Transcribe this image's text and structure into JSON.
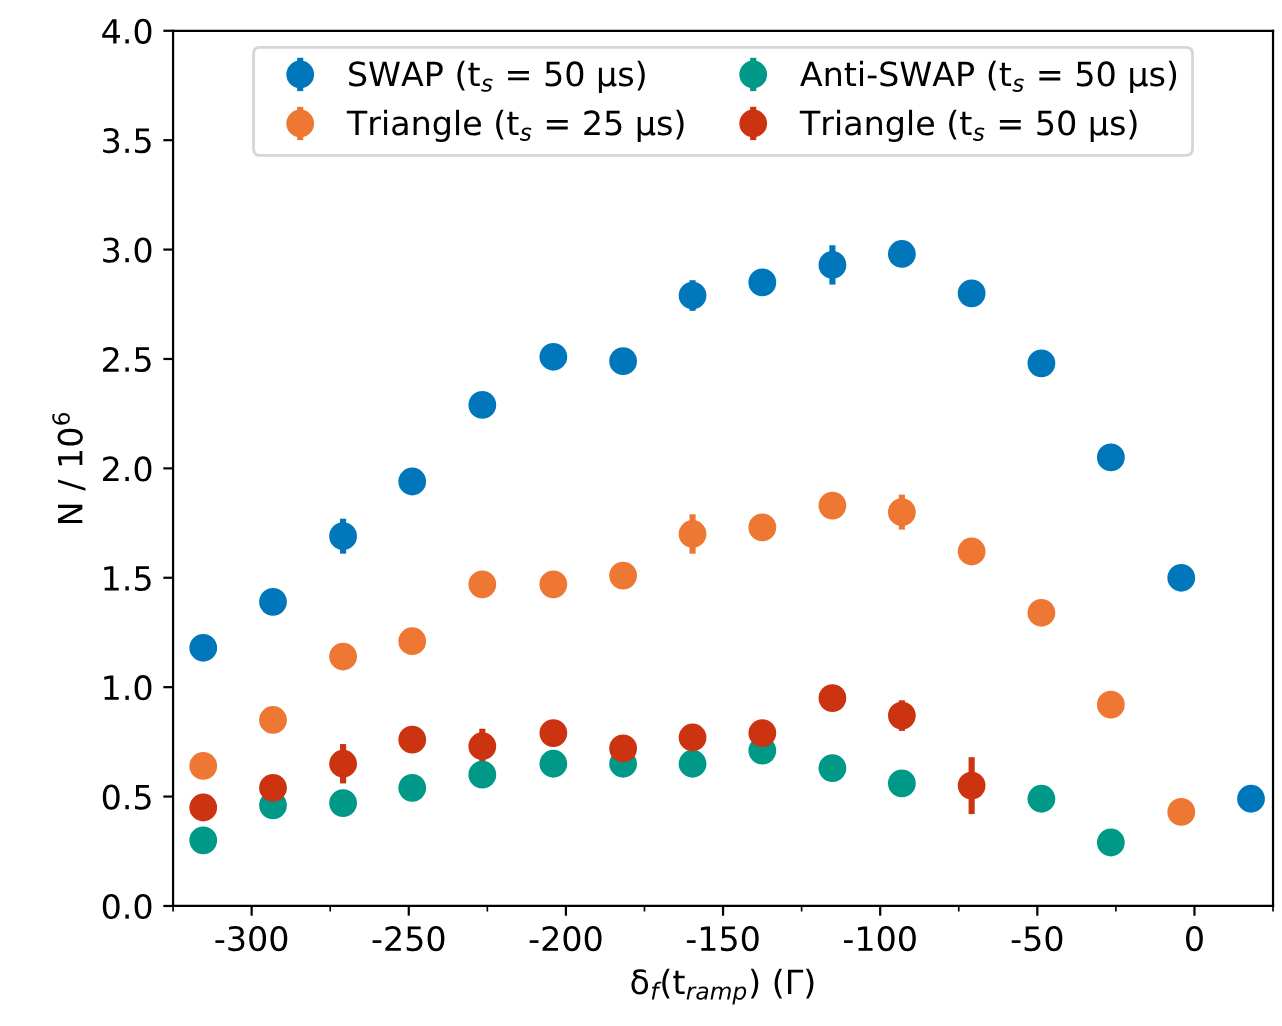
{
  "chart_data": {
    "type": "scatter",
    "xlabel": "δ$_{f}$(t$_{ramp}$) (Γ)",
    "ylabel": "N / 10$^{6}$",
    "xlim": [
      -325,
      25
    ],
    "ylim": [
      0,
      4
    ],
    "xticks": [
      {
        "value": -325,
        "label": null
      },
      -300,
      {
        "value": -275,
        "label": null
      },
      -250,
      {
        "value": -225,
        "label": null
      },
      -200,
      {
        "value": -175,
        "label": null
      },
      -150,
      {
        "value": -125,
        "label": null
      },
      -100,
      {
        "value": -75,
        "label": null
      },
      -50,
      {
        "value": -25,
        "label": null
      },
      0,
      {
        "value": 25,
        "label": null
      }
    ],
    "yticks": [
      {
        "value": 0,
        "label": "0.0"
      },
      0.5,
      {
        "value": 1,
        "label": "1.0"
      },
      1.5,
      {
        "value": 2,
        "label": "2.0"
      },
      2.5,
      {
        "value": 3,
        "label": "3.0"
      },
      3.5,
      {
        "value": 4,
        "label": "4.0"
      }
    ],
    "legend": "top",
    "grid": false,
    "marker": "circle",
    "series": [
      {
        "name": "SWAP (t$_{s}$ = 50 μs)",
        "color": "#0077bb",
        "x": [
          -315.4,
          -293.2,
          -270.9,
          -248.9,
          -226.6,
          -204,
          -181.8,
          -159.7,
          -137.5,
          -115.2,
          -93.1,
          -70.9,
          -48.7,
          -26.6,
          -4.2,
          18
        ],
        "values": [
          1.18,
          1.39,
          1.69,
          1.94,
          2.29,
          2.51,
          2.49,
          2.79,
          2.85,
          2.93,
          2.98,
          2.8,
          2.48,
          2.05,
          1.5,
          0.49
        ],
        "errors": [
          null,
          null,
          0.08,
          null,
          null,
          null,
          0.06,
          0.07,
          null,
          0.09,
          null,
          null,
          null,
          null,
          null,
          null
        ]
      },
      {
        "name": "Triangle (t$_{s}$ = 25 μs)",
        "color": "#ee7733",
        "x": [
          -315.4,
          -293.2,
          -270.9,
          -248.9,
          -226.6,
          -204,
          -181.8,
          -159.7,
          -137.5,
          -115.2,
          -93.1,
          -70.9,
          -48.7,
          -26.6,
          -4.2
        ],
        "values": [
          0.64,
          0.85,
          1.14,
          1.21,
          1.47,
          1.47,
          1.51,
          1.7,
          1.73,
          1.83,
          1.8,
          1.62,
          1.34,
          0.92,
          0.43
        ],
        "errors": [
          null,
          null,
          null,
          null,
          null,
          null,
          null,
          0.09,
          null,
          null,
          0.08,
          null,
          null,
          null,
          null
        ]
      },
      {
        "name": "Anti-SWAP (t$_{s}$ = 50 μs)",
        "color": "#009988",
        "x": [
          -315.4,
          -293.2,
          -270.9,
          -248.9,
          -226.6,
          -204,
          -181.8,
          -159.7,
          -137.5,
          -115.2,
          -93.1,
          -70.9,
          -48.7,
          -26.6
        ],
        "values": [
          0.3,
          0.46,
          0.47,
          0.54,
          0.6,
          0.65,
          0.65,
          0.65,
          0.71,
          0.63,
          0.56,
          null,
          0.49,
          0.29
        ],
        "errors": [
          null,
          0.04,
          null,
          null,
          null,
          null,
          null,
          null,
          null,
          null,
          null,
          null,
          null,
          null
        ]
      },
      {
        "name": "Triangle (t$_{s}$ = 50 μs)",
        "color": "#cc3311",
        "x": [
          -315.4,
          -293.2,
          -270.9,
          -248.9,
          -226.6,
          -204,
          -181.8,
          -159.7,
          -137.5,
          -115.2,
          -93.1,
          -70.9
        ],
        "values": [
          0.45,
          0.54,
          0.65,
          0.76,
          0.73,
          0.79,
          0.72,
          0.77,
          0.79,
          0.95,
          0.87,
          0.55
        ],
        "errors": [
          null,
          null,
          0.09,
          null,
          0.08,
          null,
          null,
          0.06,
          null,
          null,
          0.07,
          0.13
        ]
      }
    ]
  }
}
